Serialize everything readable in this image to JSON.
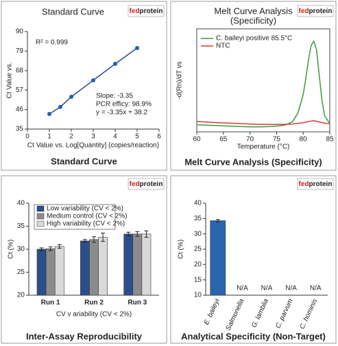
{
  "chart_data": [
    {
      "type": "scatter",
      "title": "Standard Curve",
      "logo": [
        "fed",
        "protein"
      ],
      "x_label": "Ct Value vs. Log[Quantity] (copies/reaction)",
      "y_label": "Ct Value vs.",
      "caption": "Standard Curve",
      "annotations": [
        "R² = 0.999",
        "Slope: -3.35",
        "PCR efficy: 98.9%",
        "y = -3.35x + 38.2"
      ],
      "x": [
        1,
        1.5,
        2,
        3,
        4,
        5
      ],
      "values": [
        43.5,
        47.5,
        53.2,
        62.5,
        71.8,
        80.7
      ],
      "color": "#1f5fb0",
      "xlim": [
        0,
        6
      ],
      "xticks": [
        0,
        1,
        2,
        3,
        4,
        5,
        6
      ],
      "ylim": [
        35,
        90
      ],
      "yticks": [
        35,
        46,
        57,
        68,
        79,
        90
      ]
    },
    {
      "type": "line",
      "title": [
        "Melt Curve Analysis",
        "(Specificity)"
      ],
      "logo": [
        "fed",
        "protein"
      ],
      "x_label": "Temperature (°C)",
      "y_label": "-d(Rn)/dT vs",
      "caption": "Melt Curve Analysis (Specificity)",
      "series": [
        {
          "name": "C. baileyi positive 85.5°C",
          "color": "#3a9a3a",
          "x": [
            60,
            62,
            64,
            66,
            68,
            70,
            72,
            74,
            76,
            77,
            78,
            79,
            80,
            80.5,
            81,
            81.5,
            82,
            82.5,
            83,
            83.5,
            84,
            85
          ],
          "values": [
            0.17,
            0.16,
            0.15,
            0.14,
            0.13,
            0.12,
            0.12,
            0.13,
            0.15,
            0.18,
            0.25,
            0.45,
            0.9,
            1.3,
            1.75,
            2.1,
            2.2,
            2.0,
            1.4,
            0.8,
            0.4,
            0.2
          ]
        },
        {
          "name": "NTC",
          "color": "#d23a3a",
          "x": [
            60,
            64,
            68,
            72,
            76,
            78,
            80,
            81,
            82,
            83,
            84,
            85
          ],
          "values": [
            0.25,
            0.22,
            0.2,
            0.18,
            0.18,
            0.19,
            0.22,
            0.25,
            0.27,
            0.24,
            0.21,
            0.2
          ]
        }
      ],
      "xlim": [
        60,
        85
      ],
      "xticks": [
        60,
        65,
        70,
        75,
        80,
        85
      ],
      "ylim": [
        0,
        2.5
      ]
    },
    {
      "type": "bar",
      "logo": [
        "fed",
        "protein"
      ],
      "x_label": "CV v ariability (CV < 2%)",
      "y_label": "Ct (%)",
      "caption": "Inter-Assay Reproducibility",
      "categories": [
        "Run 1",
        "Run 2",
        "Run 3"
      ],
      "series": [
        {
          "name": "Low variability (CV < 2%)",
          "color": "#2b4f8c",
          "values": [
            30.0,
            31.8,
            33.3
          ],
          "errors": [
            0.3,
            0.3,
            0.4
          ]
        },
        {
          "name": "Medium control (CV < 2%)",
          "color": "#8c8c8c",
          "values": [
            30.1,
            32.1,
            33.3
          ],
          "errors": [
            0.4,
            0.6,
            0.5
          ]
        },
        {
          "name": "High variability (CV < 2%)",
          "color": "#d9d9d9",
          "values": [
            30.6,
            32.6,
            33.3
          ],
          "errors": [
            0.4,
            0.9,
            0.7
          ]
        }
      ],
      "ylim": [
        20,
        40
      ],
      "yticks": [
        20,
        25,
        30,
        35,
        40
      ]
    },
    {
      "type": "bar",
      "logo": [
        "fed",
        "protein"
      ],
      "y_label": "Ct (%)",
      "caption": "Analytical Specificity (Non-Target)",
      "categories": [
        "E. baileyi",
        "Salmonella",
        "G. lamblia",
        "C. parvum",
        "C. hominis"
      ],
      "values": [
        34.3,
        null,
        null,
        null,
        null
      ],
      "errors": [
        0.4,
        null,
        null,
        null,
        null
      ],
      "value_labels": [
        null,
        "N/A",
        "N/A",
        "N/A",
        "N/A"
      ],
      "color": "#2a66b0",
      "ylim": [
        10,
        40
      ],
      "yticks": [
        10,
        15,
        20,
        25,
        30,
        35,
        40
      ]
    }
  ]
}
